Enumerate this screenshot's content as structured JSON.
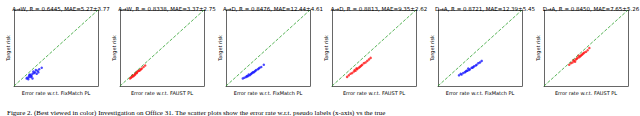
{
  "chart_data": [
    {
      "type": "scatter",
      "title": "A→W, R = 0.6445, MAE=5.27±3.77",
      "x_label": "Error rate w.r.t. FixMatch PL",
      "y_label": "Target risk",
      "xlim": [
        0,
        1
      ],
      "ylim": [
        0,
        1
      ],
      "tick_labels": false,
      "grid": false,
      "series": [
        {
          "type": "scatter",
          "color": "#1a1aff",
          "marker": "circle",
          "x": [
            0.15,
            0.18,
            0.2,
            0.22,
            0.17,
            0.25,
            0.28,
            0.21,
            0.19,
            0.24,
            0.3,
            0.16,
            0.23,
            0.27,
            0.2,
            0.26,
            0.33,
            0.22,
            0.18,
            0.29
          ],
          "values": [
            0.1,
            0.12,
            0.14,
            0.16,
            0.09,
            0.18,
            0.2,
            0.13,
            0.15,
            0.17,
            0.22,
            0.11,
            0.19,
            0.16,
            0.12,
            0.21,
            0.24,
            0.1,
            0.14,
            0.18
          ]
        },
        {
          "type": "line",
          "color": "#2ca02c",
          "line_style": "dashed",
          "x": [
            0,
            1
          ],
          "values": [
            0,
            1
          ]
        }
      ]
    },
    {
      "type": "scatter",
      "title": "A→W, R = 0.8338, MAE=3.37±2.75",
      "x_label": "Error rate w.r.t. FAUST PL",
      "y_label": "Target risk",
      "xlim": [
        0,
        1
      ],
      "ylim": [
        0,
        1
      ],
      "tick_labels": false,
      "grid": false,
      "series": [
        {
          "type": "scatter",
          "color": "#ff1a1a",
          "marker": "circle",
          "x": [
            0.12,
            0.15,
            0.18,
            0.2,
            0.14,
            0.22,
            0.25,
            0.17,
            0.19,
            0.28,
            0.16,
            0.21,
            0.24,
            0.13,
            0.3,
            0.23,
            0.18,
            0.26,
            0.2,
            0.15
          ],
          "values": [
            0.1,
            0.13,
            0.15,
            0.18,
            0.12,
            0.2,
            0.22,
            0.14,
            0.17,
            0.25,
            0.13,
            0.19,
            0.21,
            0.11,
            0.27,
            0.2,
            0.16,
            0.23,
            0.17,
            0.14
          ]
        },
        {
          "type": "line",
          "color": "#2ca02c",
          "line_style": "dashed",
          "x": [
            0,
            1
          ],
          "values": [
            0,
            1
          ]
        }
      ]
    },
    {
      "type": "scatter",
      "title": "A→D, R = 0.8476, MAE=12.44±4.61",
      "x_label": "Error rate w.r.t. FixMatch PL",
      "y_label": "Target risk",
      "xlim": [
        0,
        1
      ],
      "ylim": [
        0,
        1
      ],
      "tick_labels": false,
      "grid": false,
      "series": [
        {
          "type": "scatter",
          "color": "#1a1aff",
          "marker": "circle",
          "x": [
            0.2,
            0.25,
            0.3,
            0.35,
            0.28,
            0.4,
            0.22,
            0.33,
            0.38,
            0.27,
            0.31,
            0.45,
            0.24,
            0.36,
            0.29,
            0.42,
            0.26,
            0.34,
            0.32,
            0.39
          ],
          "values": [
            0.1,
            0.13,
            0.16,
            0.2,
            0.14,
            0.24,
            0.11,
            0.18,
            0.22,
            0.15,
            0.17,
            0.28,
            0.12,
            0.21,
            0.15,
            0.25,
            0.13,
            0.19,
            0.18,
            0.23
          ]
        },
        {
          "type": "line",
          "color": "#2ca02c",
          "line_style": "dashed",
          "x": [
            0,
            1
          ],
          "values": [
            0,
            1
          ]
        }
      ]
    },
    {
      "type": "scatter",
      "title": "A→D, R = 0.8813, MAE=9.35±2.62",
      "x_label": "Error rate w.r.t. FAUST PL",
      "y_label": "Target risk",
      "xlim": [
        0,
        1
      ],
      "ylim": [
        0,
        1
      ],
      "tick_labels": false,
      "grid": false,
      "series": [
        {
          "type": "scatter",
          "color": "#ff1a1a",
          "marker": "circle",
          "x": [
            0.18,
            0.22,
            0.26,
            0.3,
            0.34,
            0.38,
            0.42,
            0.46,
            0.24,
            0.28,
            0.32,
            0.36,
            0.4,
            0.2,
            0.3,
            0.35,
            0.27,
            0.44,
            0.33,
            0.29
          ],
          "values": [
            0.12,
            0.16,
            0.19,
            0.23,
            0.26,
            0.3,
            0.33,
            0.37,
            0.17,
            0.2,
            0.24,
            0.28,
            0.31,
            0.14,
            0.22,
            0.27,
            0.21,
            0.35,
            0.25,
            0.23
          ]
        },
        {
          "type": "line",
          "color": "#2ca02c",
          "line_style": "dashed",
          "x": [
            0,
            1
          ],
          "values": [
            0,
            1
          ]
        }
      ]
    },
    {
      "type": "scatter",
      "title": "D→A, R = 0.8721, MAE=12.39±5.45",
      "x_label": "Error rate w.r.t. FixMatch PL",
      "y_label": "Target risk",
      "xlim": [
        0,
        1
      ],
      "ylim": [
        0,
        1
      ],
      "tick_labels": false,
      "grid": false,
      "series": [
        {
          "type": "scatter",
          "color": "#1a1aff",
          "marker": "circle",
          "x": [
            0.25,
            0.3,
            0.35,
            0.4,
            0.45,
            0.5,
            0.28,
            0.33,
            0.38,
            0.43,
            0.48,
            0.32,
            0.37,
            0.42,
            0.27,
            0.52,
            0.36,
            0.41,
            0.46,
            0.34
          ],
          "values": [
            0.14,
            0.17,
            0.2,
            0.24,
            0.27,
            0.31,
            0.15,
            0.19,
            0.22,
            0.26,
            0.3,
            0.18,
            0.21,
            0.25,
            0.16,
            0.33,
            0.23,
            0.24,
            0.28,
            0.2
          ]
        },
        {
          "type": "line",
          "color": "#2ca02c",
          "line_style": "dashed",
          "x": [
            0,
            1
          ],
          "values": [
            0,
            1
          ]
        }
      ]
    },
    {
      "type": "scatter",
      "title": "D→A, R = 0.8450, MAE=7.65±5.26",
      "x_label": "Error rate w.r.t. FAUST PL",
      "y_label": "Target risk",
      "xlim": [
        0,
        1
      ],
      "ylim": [
        0,
        1
      ],
      "tick_labels": false,
      "grid": false,
      "series": [
        {
          "type": "scatter",
          "color": "#ff1a1a",
          "marker": "circle",
          "x": [
            0.3,
            0.34,
            0.38,
            0.42,
            0.46,
            0.5,
            0.54,
            0.32,
            0.36,
            0.4,
            0.44,
            0.48,
            0.52,
            0.35,
            0.39,
            0.43,
            0.47,
            0.41,
            0.37,
            0.45
          ],
          "values": [
            0.28,
            0.31,
            0.35,
            0.38,
            0.42,
            0.45,
            0.5,
            0.3,
            0.33,
            0.37,
            0.4,
            0.44,
            0.47,
            0.34,
            0.36,
            0.39,
            0.43,
            0.4,
            0.32,
            0.41
          ]
        },
        {
          "type": "line",
          "color": "#2ca02c",
          "line_style": "dashed",
          "x": [
            0,
            1
          ],
          "values": [
            0,
            1
          ]
        }
      ]
    }
  ],
  "caption": "Figure 2. (Best viewed in color) Investigation on Office 31. The scatter plots show the error rate w.r.t. pseudo labels (x-axis) vs the true"
}
